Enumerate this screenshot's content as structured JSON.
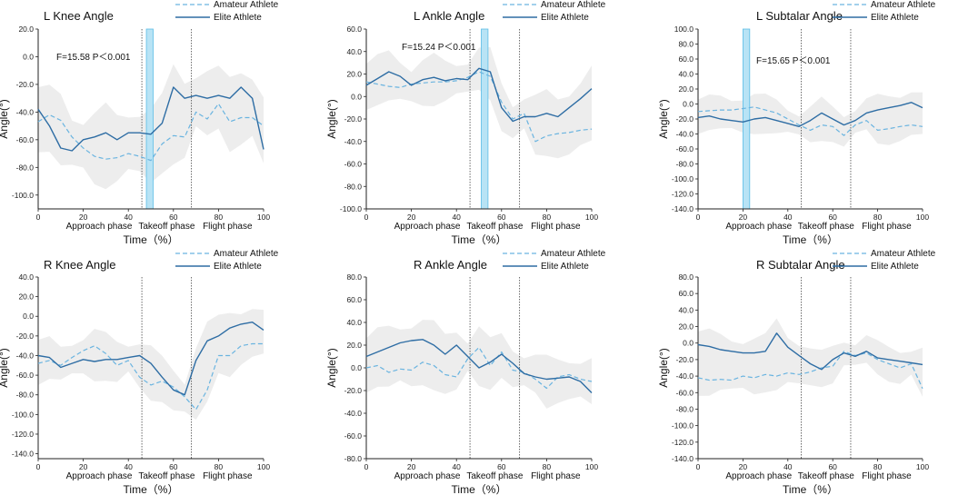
{
  "figure": {
    "legend": {
      "amateur": "Amateur Athlete",
      "elite": "Elite Athlete"
    },
    "x_label": "Time（%）",
    "y_label": "Angle(°)",
    "phases": [
      "Approach phase",
      "Takeoff phase",
      "Flight phase"
    ],
    "phase_boundaries": [
      46,
      68
    ],
    "colors": {
      "elite": "#2e6da4",
      "amateur": "#6ab4e0",
      "band": "#ededed",
      "highlight": "#b8e3f5",
      "highlight_edge": "#5bbde6"
    }
  },
  "chart_data": [
    {
      "type": "line",
      "title": "L  Knee Angle",
      "xlabel": "Time（%）",
      "ylabel": "Angle(°)",
      "xlim": [
        0,
        100
      ],
      "ylim": [
        -110,
        20
      ],
      "yticks": [
        "20.0",
        "0.0",
        "-20.0",
        "-40.0",
        "-60.0",
        "-80.0",
        "-100.0"
      ],
      "xticks": [
        "0",
        "20",
        "40",
        "60",
        "80",
        "100"
      ],
      "annotation": "F=15.58 P＜0.001",
      "highlight": [
        48,
        51
      ],
      "x": [
        0,
        5,
        10,
        15,
        20,
        25,
        30,
        35,
        40,
        45,
        50,
        55,
        60,
        65,
        70,
        75,
        80,
        85,
        90,
        95,
        100
      ],
      "series": [
        {
          "name": "Amateur Athlete",
          "values": [
            -47,
            -42,
            -46,
            -58,
            -66,
            -72,
            -74,
            -73,
            -70,
            -72,
            -75,
            -63,
            -57,
            -58,
            -40,
            -45,
            -34,
            -47,
            -44,
            -44,
            -50
          ]
        },
        {
          "name": "Elite Athlete",
          "values": [
            -38,
            -50,
            -66,
            -68,
            -60,
            -58,
            -55,
            -60,
            -55,
            -55,
            -56,
            -48,
            -22,
            -30,
            -28,
            -30,
            -28,
            -30,
            -22,
            -30,
            -67
          ]
        }
      ]
    },
    {
      "type": "line",
      "title": "L Ankle Angle",
      "xlabel": "Time（%）",
      "ylabel": "Angle(°)",
      "xlim": [
        0,
        100
      ],
      "ylim": [
        -100,
        60
      ],
      "yticks": [
        "60.0",
        "40.0",
        "20.0",
        "0.0",
        "-20.0",
        "-40.0",
        "-60.0",
        "-80.0",
        "-100.0"
      ],
      "xticks": [
        "0",
        "20",
        "40",
        "60",
        "80",
        "100"
      ],
      "annotation": "F=15.24 P＜0.001",
      "highlight": [
        51,
        54
      ],
      "x": [
        0,
        5,
        10,
        15,
        20,
        25,
        30,
        35,
        40,
        45,
        50,
        55,
        60,
        65,
        70,
        75,
        80,
        85,
        90,
        95,
        100
      ],
      "series": [
        {
          "name": "Amateur Athlete",
          "values": [
            13,
            11,
            9,
            8,
            11,
            12,
            13,
            13,
            14,
            17,
            22,
            18,
            -5,
            -20,
            -15,
            -40,
            -35,
            -33,
            -32,
            -30,
            -29
          ]
        },
        {
          "name": "Elite Athlete",
          "values": [
            10,
            16,
            22,
            18,
            10,
            15,
            17,
            14,
            16,
            15,
            25,
            22,
            -10,
            -22,
            -18,
            -18,
            -15,
            -18,
            -10,
            -2,
            7
          ]
        }
      ]
    },
    {
      "type": "line",
      "title": "L Subtalar Angle",
      "xlabel": "Time（%）",
      "ylabel": "Angle(°)",
      "xlim": [
        0,
        100
      ],
      "ylim": [
        -140,
        100
      ],
      "yticks": [
        "100.0",
        "80.0",
        "60.0",
        "40.0",
        "20.0",
        "0.0",
        "-20.0",
        "-40.0",
        "-60.0",
        "-80.0",
        "-100.0",
        "-120.0",
        "-140.0"
      ],
      "xticks": [
        "0",
        "20",
        "40",
        "60",
        "80",
        "100"
      ],
      "annotation": "F=15.65 P＜0.001",
      "highlight": [
        20,
        23
      ],
      "x": [
        0,
        5,
        10,
        15,
        20,
        25,
        30,
        35,
        40,
        45,
        50,
        55,
        60,
        65,
        70,
        75,
        80,
        85,
        90,
        95,
        100
      ],
      "series": [
        {
          "name": "Amateur Athlete",
          "values": [
            -10,
            -9,
            -8,
            -8,
            -6,
            -4,
            -8,
            -12,
            -20,
            -28,
            -35,
            -28,
            -30,
            -42,
            -28,
            -22,
            -35,
            -33,
            -30,
            -28,
            -30
          ]
        },
        {
          "name": "Elite Athlete",
          "values": [
            -18,
            -16,
            -20,
            -22,
            -24,
            -20,
            -18,
            -22,
            -26,
            -30,
            -22,
            -12,
            -20,
            -28,
            -22,
            -12,
            -8,
            -5,
            -2,
            2,
            -5
          ]
        }
      ]
    },
    {
      "type": "line",
      "title": "R  Knee Angle",
      "xlabel": "Time（%）",
      "ylabel": "Angle(°)",
      "xlim": [
        0,
        100
      ],
      "ylim": [
        -145,
        40
      ],
      "yticks": [
        "40.0",
        "20.0",
        "0.0",
        "-20.0",
        "-40.0",
        "-60.0",
        "-80.0",
        "-100.0",
        "-120.0",
        "-140.0"
      ],
      "xticks": [
        "0",
        "20",
        "40",
        "60",
        "80",
        "100"
      ],
      "annotation": "",
      "highlight": null,
      "x": [
        0,
        5,
        10,
        15,
        20,
        25,
        30,
        35,
        40,
        45,
        50,
        55,
        60,
        65,
        70,
        75,
        80,
        85,
        90,
        95,
        100
      ],
      "series": [
        {
          "name": "Amateur Athlete",
          "values": [
            -48,
            -45,
            -50,
            -42,
            -35,
            -30,
            -38,
            -50,
            -45,
            -62,
            -70,
            -66,
            -72,
            -82,
            -95,
            -75,
            -40,
            -40,
            -30,
            -28,
            -28
          ]
        },
        {
          "name": "Elite Athlete",
          "values": [
            -40,
            -42,
            -52,
            -48,
            -44,
            -46,
            -44,
            -44,
            -42,
            -40,
            -48,
            -62,
            -75,
            -80,
            -45,
            -25,
            -20,
            -12,
            -8,
            -6,
            -14
          ]
        }
      ]
    },
    {
      "type": "line",
      "title": "R Ankle Angle",
      "xlabel": "Time（%）",
      "ylabel": "Angle(°)",
      "xlim": [
        0,
        100
      ],
      "ylim": [
        -80,
        80
      ],
      "yticks": [
        "80.0",
        "60.0",
        "40.0",
        "20.0",
        "0.0",
        "-20.0",
        "-40.0",
        "-60.0",
        "-80.0"
      ],
      "xticks": [
        "0",
        "20",
        "40",
        "60",
        "80",
        "100"
      ],
      "annotation": "",
      "highlight": null,
      "x": [
        0,
        5,
        10,
        15,
        20,
        25,
        30,
        35,
        40,
        45,
        50,
        55,
        60,
        65,
        70,
        75,
        80,
        85,
        90,
        95,
        100
      ],
      "series": [
        {
          "name": "Amateur Athlete",
          "values": [
            0,
            2,
            -4,
            -1,
            -2,
            5,
            2,
            -6,
            -8,
            8,
            18,
            2,
            14,
            -2,
            -4,
            -10,
            -18,
            -8,
            -6,
            -10,
            -12
          ]
        },
        {
          "name": "Elite Athlete",
          "values": [
            10,
            14,
            18,
            22,
            24,
            25,
            20,
            12,
            20,
            10,
            0,
            5,
            12,
            4,
            -5,
            -8,
            -10,
            -9,
            -8,
            -12,
            -22
          ]
        }
      ]
    },
    {
      "type": "line",
      "title": "R Subtalar Angle",
      "xlabel": "Time（%）",
      "ylabel": "Angle(°)",
      "xlim": [
        0,
        100
      ],
      "ylim": [
        -140,
        80
      ],
      "yticks": [
        "80.0",
        "60.0",
        "40.0",
        "20.0",
        "0.0",
        "-20.0",
        "-40.0",
        "-60.0",
        "-80.0",
        "-100.0",
        "-120.0",
        "-140.0"
      ],
      "xticks": [
        "0",
        "20",
        "40",
        "60",
        "80",
        "100"
      ],
      "annotation": "",
      "highlight": null,
      "x": [
        0,
        5,
        10,
        15,
        20,
        25,
        30,
        35,
        40,
        45,
        50,
        55,
        60,
        65,
        70,
        75,
        80,
        85,
        90,
        95,
        100
      ],
      "series": [
        {
          "name": "Amateur Athlete",
          "values": [
            -42,
            -45,
            -44,
            -45,
            -40,
            -42,
            -38,
            -40,
            -36,
            -38,
            -35,
            -30,
            -28,
            -10,
            -15,
            -12,
            -20,
            -25,
            -30,
            -25,
            -55
          ]
        },
        {
          "name": "Elite Athlete",
          "values": [
            -2,
            -4,
            -8,
            -10,
            -12,
            -12,
            -10,
            12,
            -5,
            -15,
            -25,
            -32,
            -20,
            -12,
            -16,
            -10,
            -18,
            -20,
            -22,
            -24,
            -26
          ]
        }
      ]
    }
  ]
}
